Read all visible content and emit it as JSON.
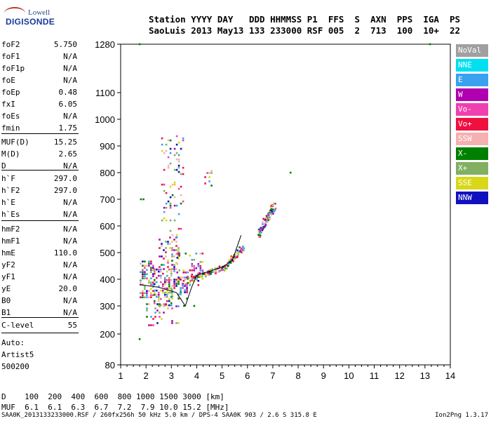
{
  "logo": {
    "line1": "Lowell",
    "line2": "DIGISONDE"
  },
  "header": {
    "row1": "Station YYYY DAY   DDD HHMMSS P1  FFS  S  AXN  PPS  IGA  PS",
    "row2": "SaoLuis 2013 May13 133 233000 RSF 005  2  713  100  10+  22"
  },
  "params": [
    {
      "name": "foF2",
      "value": "5.750"
    },
    {
      "name": "foF1",
      "value": "N/A"
    },
    {
      "name": "foF1p",
      "value": "N/A"
    },
    {
      "name": "foE",
      "value": "N/A"
    },
    {
      "name": "foEp",
      "value": "0.48"
    },
    {
      "name": "fxI",
      "value": "6.05"
    },
    {
      "name": "foEs",
      "value": "N/A"
    },
    {
      "name": "fmin",
      "value": "1.75"
    },
    {
      "name": "MUF(D)",
      "value": "15.25"
    },
    {
      "name": "M(D)",
      "value": "2.65"
    },
    {
      "name": "D",
      "value": "N/A"
    },
    {
      "name": "h`F",
      "value": "297.0"
    },
    {
      "name": "h`F2",
      "value": "297.0"
    },
    {
      "name": "h`E",
      "value": "N/A"
    },
    {
      "name": "h`Es",
      "value": "N/A"
    },
    {
      "name": "hmF2",
      "value": "N/A"
    },
    {
      "name": "hmF1",
      "value": "N/A"
    },
    {
      "name": "hmE",
      "value": "110.0"
    },
    {
      "name": "yF2",
      "value": "N/A"
    },
    {
      "name": "yF1",
      "value": "N/A"
    },
    {
      "name": "yE",
      "value": "20.0"
    },
    {
      "name": "B0",
      "value": "N/A"
    },
    {
      "name": "B1",
      "value": "N/A"
    },
    {
      "name": "C-level",
      "value": "55"
    },
    {
      "name": "Auto:",
      "value": ""
    },
    {
      "name": "Artist5",
      "value": ""
    },
    {
      "name": "500200",
      "value": ""
    }
  ],
  "legend": [
    {
      "label": "NoVal",
      "color": "#a0a0a0"
    },
    {
      "label": "NNE",
      "color": "#00e0f0"
    },
    {
      "label": "E",
      "color": "#3aa0f0"
    },
    {
      "label": "W",
      "color": "#b000b0"
    },
    {
      "label": "Vo-",
      "color": "#f040b0"
    },
    {
      "label": "Vo+",
      "color": "#f01040"
    },
    {
      "label": "SSW",
      "color": "#f5b0b0"
    },
    {
      "label": "X-",
      "color": "#008000"
    },
    {
      "label": "X+",
      "color": "#80b060"
    },
    {
      "label": "SSE",
      "color": "#d8d818"
    },
    {
      "label": "NNW",
      "color": "#1010c0"
    }
  ],
  "muf_table": {
    "row1": "D    100  200  400  600  800 1000 1500 3000 [km]",
    "row2": "MUF  6.1  6.1  6.3  6.7  7.2  7.9 10.0 15.2 [MHz]"
  },
  "footer": {
    "left": "SAA0K_2013133233000.RSF / 260fx256h 50 kHz 5.0 km / DPS-4 SAA0K 903 / 2.6 S 315.8 E",
    "right": "Ion2Png 1.3.17"
  },
  "chart_data": {
    "type": "scatter",
    "title": "",
    "xlabel": "",
    "ylabel": "",
    "xlim": [
      1,
      14
    ],
    "ylim": [
      80,
      1280
    ],
    "x_ticks": [
      1,
      2,
      3,
      4,
      5,
      6,
      7,
      8,
      9,
      10,
      11,
      12,
      13,
      14
    ],
    "y_ticks": [
      80,
      200,
      300,
      400,
      500,
      600,
      700,
      800,
      900,
      1000,
      1100,
      1280
    ],
    "y_scale": "nonlinear (height grid per ionogram display)",
    "grid": false,
    "legend_placement": "right",
    "trace_colors": [
      "#d8d818",
      "#f040b0",
      "#b000b0",
      "#008000",
      "#80b060",
      "#f5b0b0",
      "#f01040",
      "#3aa0f0",
      "#1010c0"
    ],
    "echo_regions": [
      {
        "x_range": [
          1.75,
          2.3
        ],
        "y_range": [
          330,
          470
        ],
        "density": 0.55
      },
      {
        "x_range": [
          2.3,
          3.0
        ],
        "y_range": [
          300,
          440
        ],
        "density": 0.5
      },
      {
        "x_range": [
          3.0,
          3.6
        ],
        "y_range": [
          330,
          410
        ],
        "density": 0.45
      },
      {
        "x_range": [
          2.5,
          3.3
        ],
        "y_range": [
          430,
          560
        ],
        "density": 0.3
      },
      {
        "x_range": [
          2.6,
          3.5
        ],
        "y_range": [
          560,
          940
        ],
        "density": 0.12
      },
      {
        "x_range": [
          3.2,
          4.2
        ],
        "y_range": [
          380,
          500
        ],
        "density": 0.25
      },
      {
        "x_range": [
          2.0,
          3.3
        ],
        "y_range": [
          230,
          310
        ],
        "density": 0.2
      },
      {
        "x_range": [
          4.3,
          4.6
        ],
        "y_range": [
          740,
          810
        ],
        "density": 0.25
      }
    ],
    "traces": [
      {
        "x": [
          3.7,
          4.0,
          4.5,
          5.0,
          5.4,
          5.75
        ],
        "y": [
          400,
          415,
          430,
          445,
          480,
          520
        ],
        "spread": 12
      },
      {
        "x": [
          6.4,
          6.6,
          6.8,
          7.0
        ],
        "y": [
          570,
          610,
          640,
          680
        ],
        "spread": 18
      }
    ],
    "profile_line": [
      {
        "x": 1.75,
        "y": 380
      },
      {
        "x": 2.5,
        "y": 370
      },
      {
        "x": 3.2,
        "y": 350
      },
      {
        "x": 3.55,
        "y": 300
      },
      {
        "x": 3.8,
        "y": 370
      },
      {
        "x": 4.0,
        "y": 415
      },
      {
        "x": 4.5,
        "y": 430
      },
      {
        "x": 5.0,
        "y": 445
      },
      {
        "x": 5.4,
        "y": 470
      },
      {
        "x": 5.75,
        "y": 565
      }
    ],
    "outliers": [
      {
        "x": 1.75,
        "y": 1280
      },
      {
        "x": 13.2,
        "y": 1280
      },
      {
        "x": 1.8,
        "y": 700
      },
      {
        "x": 1.9,
        "y": 700
      },
      {
        "x": 1.75,
        "y": 180
      },
      {
        "x": 7.7,
        "y": 800
      },
      {
        "x": 3.9,
        "y": 300
      },
      {
        "x": 3.5,
        "y": 300
      }
    ]
  }
}
